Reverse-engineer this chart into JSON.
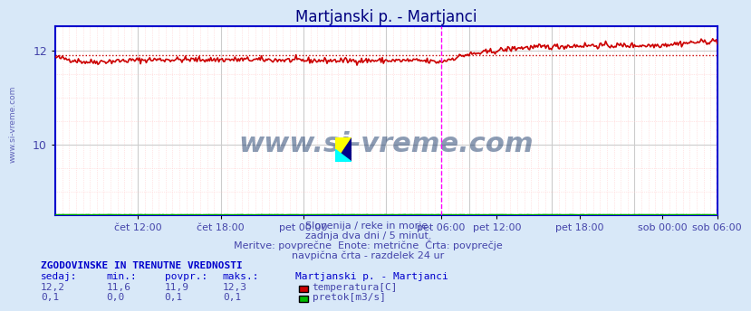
{
  "title": "Martjanski p. - Martjanci",
  "title_color": "#000080",
  "bg_color": "#d8e8f8",
  "plot_bg_color": "#ffffff",
  "xlabel_color": "#4444aa",
  "ylabel_color": "#4444aa",
  "temp_line_color": "#cc0000",
  "flow_line_color": "#00aa00",
  "vline_color": "#ff00ff",
  "border_color": "#0000cc",
  "ylim": [
    8.5,
    12.5
  ],
  "yticks": [
    10,
    12
  ],
  "temp_avg": 11.9,
  "watermark": "www.si-vreme.com",
  "watermark_color": "#1a3a6a",
  "subtitle1": "Slovenija / reke in morje.",
  "subtitle2": "zadnja dva dni / 5 minut.",
  "subtitle3": "Meritve: povprečne  Enote: metrične  Črta: povprečje",
  "subtitle4": "navpična črta - razdelek 24 ur",
  "subtitle_color": "#4444aa",
  "table_header": "ZGODOVINSKE IN TRENUTNE VREDNOSTI",
  "table_header_color": "#0000cc",
  "col_headers": [
    "sedaj:",
    "min.:",
    "povpr.:",
    "maks.:",
    "Martjanski p. - Martjanci"
  ],
  "row1_vals": [
    "12,2",
    "11,6",
    "11,9",
    "12,3"
  ],
  "row2_vals": [
    "0,1",
    "0,0",
    "0,1",
    "0,1"
  ],
  "row1_label": "temperatura[C]",
  "row2_label": "pretok[m3/s]",
  "temp_box_color": "#cc0000",
  "flow_box_color": "#00bb00",
  "x_tick_pos": [
    0.125,
    0.25,
    0.375,
    0.583,
    0.667,
    0.792,
    0.917,
    1.0
  ],
  "x_tick_lab": [
    "čet 12:00",
    "čet 18:00",
    "pet 00:00",
    "pet 06:00",
    "pet 12:00",
    "pet 18:00",
    "sob 00:00",
    "sob 06:00"
  ]
}
